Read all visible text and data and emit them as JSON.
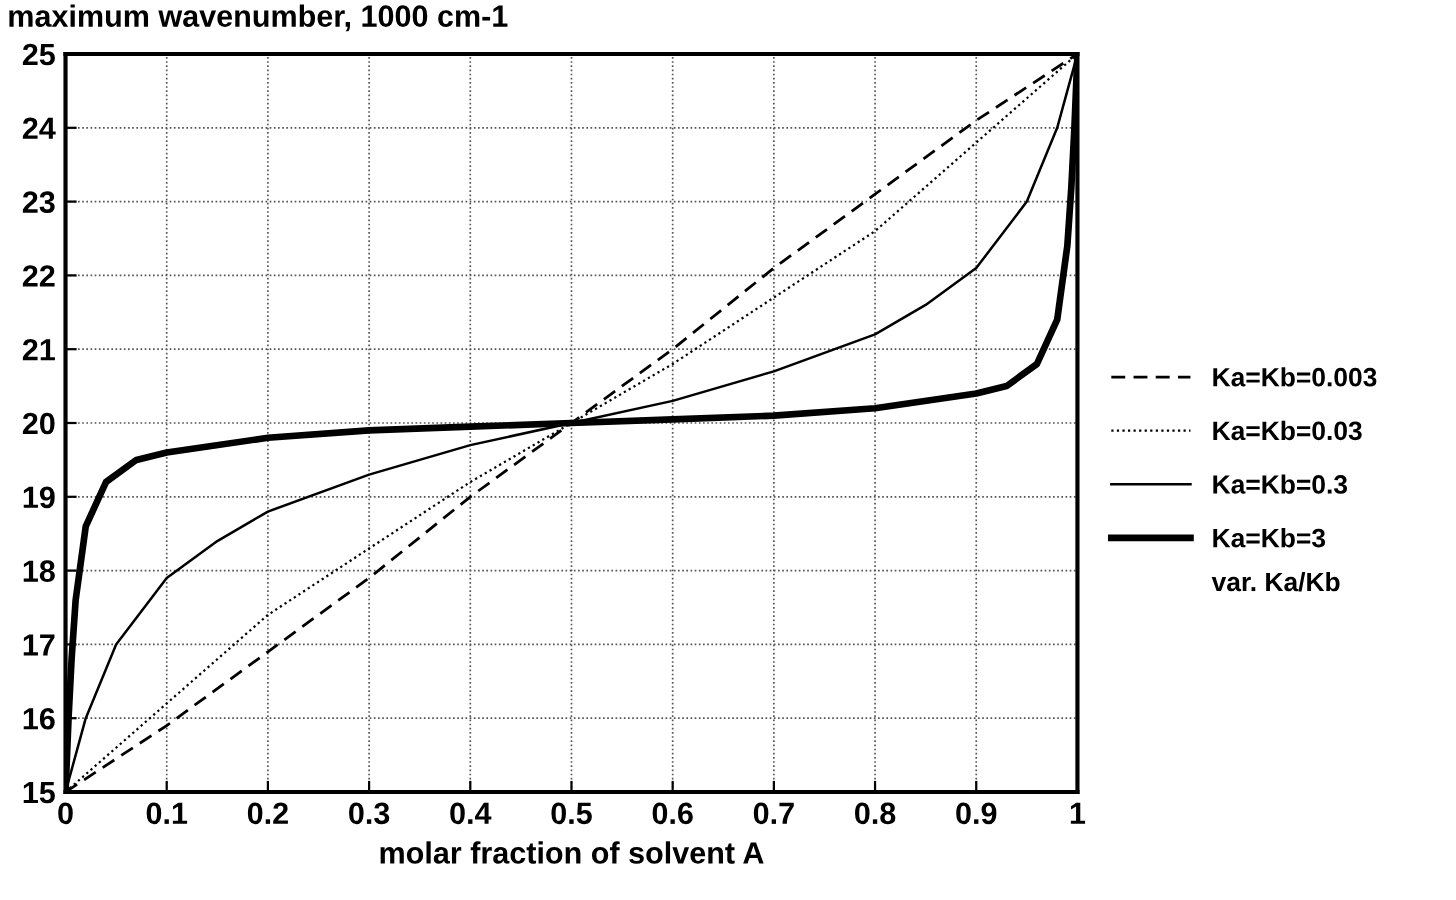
{
  "chart_data": {
    "type": "line",
    "ylabel": "maximum wavenumber, 1000 cm-1",
    "xlabel": "molar fraction of solvent A",
    "legend_title": "var. Ka/Kb",
    "xlim": [
      0,
      1
    ],
    "ylim": [
      15,
      25
    ],
    "xticks": [
      0,
      0.1,
      0.2,
      0.3,
      0.4,
      0.5,
      0.6,
      0.7,
      0.8,
      0.9,
      1
    ],
    "yticks": [
      15,
      16,
      17,
      18,
      19,
      20,
      21,
      22,
      23,
      24,
      25
    ],
    "grid": true,
    "legend": "right",
    "marker": "none",
    "series": [
      {
        "name": "Ka=Kb=0.003",
        "color": "#000000",
        "line_style": "dashed",
        "x": [
          0,
          0.1,
          0.2,
          0.3,
          0.4,
          0.5,
          0.6,
          0.7,
          0.8,
          0.9,
          1
        ],
        "values": [
          15,
          15.9,
          16.9,
          17.9,
          19.0,
          20,
          21.0,
          22.1,
          23.1,
          24.1,
          25
        ]
      },
      {
        "name": "Ka=Kb=0.03",
        "color": "#000000",
        "line_style": "dotted",
        "x": [
          0,
          0.05,
          0.1,
          0.2,
          0.3,
          0.4,
          0.5,
          0.6,
          0.7,
          0.8,
          0.9,
          0.95,
          1
        ],
        "values": [
          15,
          15.6,
          16.2,
          17.4,
          18.3,
          19.2,
          20,
          20.8,
          21.7,
          22.6,
          23.8,
          24.4,
          25
        ]
      },
      {
        "name": "Ka=Kb=0.3",
        "color": "#000000",
        "line_style": "solid",
        "x": [
          0,
          0.01,
          0.02,
          0.05,
          0.1,
          0.15,
          0.2,
          0.3,
          0.4,
          0.5,
          0.6,
          0.7,
          0.8,
          0.85,
          0.9,
          0.95,
          0.98,
          0.99,
          1
        ],
        "values": [
          15,
          15.5,
          16.0,
          17.0,
          17.9,
          18.4,
          18.8,
          19.3,
          19.7,
          20,
          20.3,
          20.7,
          21.2,
          21.6,
          22.1,
          23.0,
          24.0,
          24.5,
          25
        ]
      },
      {
        "name": "Ka=Kb=3",
        "color": "#000000",
        "line_style": "solid",
        "x": [
          0,
          0.003,
          0.006,
          0.01,
          0.02,
          0.04,
          0.07,
          0.1,
          0.2,
          0.3,
          0.4,
          0.5,
          0.6,
          0.7,
          0.8,
          0.9,
          0.93,
          0.96,
          0.98,
          0.99,
          0.994,
          0.997,
          1
        ],
        "values": [
          15,
          16.0,
          16.8,
          17.6,
          18.6,
          19.2,
          19.5,
          19.6,
          19.8,
          19.9,
          19.95,
          20,
          20.05,
          20.1,
          20.2,
          20.4,
          20.5,
          20.8,
          21.4,
          22.4,
          23.2,
          24.0,
          25
        ]
      }
    ]
  }
}
